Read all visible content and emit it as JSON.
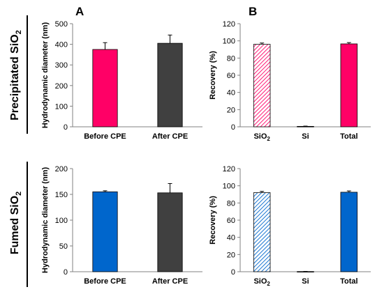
{
  "panel_labels": {
    "a": "A",
    "b": "B"
  },
  "row_labels": {
    "top": {
      "text": "Precipitated SiO",
      "sub": "2"
    },
    "bottom": {
      "text": "Fumed SiO",
      "sub": "2"
    }
  },
  "colors": {
    "magenta": "#ff0066",
    "blue": "#0066cc",
    "dark_gray": "#404040",
    "axis": "#808080"
  },
  "chart_data": [
    {
      "id": "precip-diameter",
      "type": "bar",
      "title": "",
      "ylabel": "Hydrodynamic diameter (nm)",
      "ylim": [
        0,
        500
      ],
      "yticks": [
        0,
        100,
        200,
        300,
        400,
        500
      ],
      "categories": [
        {
          "text": "Before CPE"
        },
        {
          "text": "After CPE"
        }
      ],
      "bars": [
        {
          "value": 375,
          "error": 33,
          "color": "#ff0066",
          "pattern": "solid"
        },
        {
          "value": 405,
          "error": 40,
          "color": "#404040",
          "pattern": "solid"
        }
      ]
    },
    {
      "id": "precip-recovery",
      "type": "bar",
      "title": "",
      "ylabel": "Recovery (%)",
      "ylim": [
        0,
        120
      ],
      "yticks": [
        0,
        20,
        40,
        60,
        80,
        100,
        120
      ],
      "categories": [
        {
          "text": "SiO",
          "sub": "2"
        },
        {
          "text": "Si"
        },
        {
          "text": "Total"
        }
      ],
      "bars": [
        {
          "value": 96,
          "error": 1.5,
          "color": "#ff0066",
          "pattern": "hatch"
        },
        {
          "value": 0.5,
          "error": 0.3,
          "color": "#ff0066",
          "pattern": "hatch"
        },
        {
          "value": 96.5,
          "error": 1.5,
          "color": "#ff0066",
          "pattern": "solid"
        }
      ]
    },
    {
      "id": "fumed-diameter",
      "type": "bar",
      "title": "",
      "ylabel": "Hydrodynamic diameter (nm)",
      "ylim": [
        0,
        200
      ],
      "yticks": [
        0,
        50,
        100,
        150,
        200
      ],
      "categories": [
        {
          "text": "Before CPE"
        },
        {
          "text": "After CPE"
        }
      ],
      "bars": [
        {
          "value": 155,
          "error": 2,
          "color": "#0066cc",
          "pattern": "solid"
        },
        {
          "value": 153,
          "error": 18,
          "color": "#404040",
          "pattern": "solid"
        }
      ]
    },
    {
      "id": "fumed-recovery",
      "type": "bar",
      "title": "",
      "ylabel": "Recovery (%)",
      "ylim": [
        0,
        120
      ],
      "yticks": [
        0,
        20,
        40,
        60,
        80,
        100,
        120
      ],
      "categories": [
        {
          "text": "SiO",
          "sub": "2"
        },
        {
          "text": "Si"
        },
        {
          "text": "Total"
        }
      ],
      "bars": [
        {
          "value": 92,
          "error": 1.5,
          "color": "#0066cc",
          "pattern": "hatch"
        },
        {
          "value": 0.2,
          "error": 0.1,
          "color": "#0066cc",
          "pattern": "hatch"
        },
        {
          "value": 92.5,
          "error": 1.5,
          "color": "#0066cc",
          "pattern": "solid"
        }
      ]
    }
  ]
}
